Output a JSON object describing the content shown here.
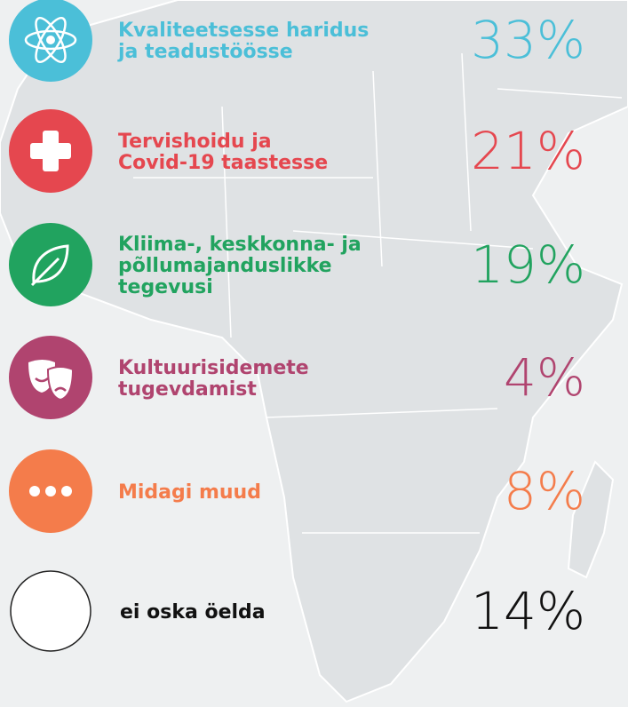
{
  "items": [
    {
      "label": "Kvaliteetsesse haridus\nja teadustöösse",
      "percent": "33%",
      "color": "#4bbfd8"
    },
    {
      "label": "Tervishoidu ja\nCovid-19 taastesse",
      "percent": "21%",
      "color": "#e5474f"
    },
    {
      "label": "Kliima-, keskkonna- ja\npõllumajanduslikke\ntegevusi",
      "percent": "19%",
      "color": "#21a35f"
    },
    {
      "label": "Kultuurisidemete\ntugevdamist",
      "percent": "4%",
      "color": "#b0446f"
    },
    {
      "label": "Midagi muud",
      "percent": "8%",
      "color": "#f47c4b"
    },
    {
      "label": "ei oska öelda",
      "percent": "14%",
      "color": "#111111"
    }
  ]
}
